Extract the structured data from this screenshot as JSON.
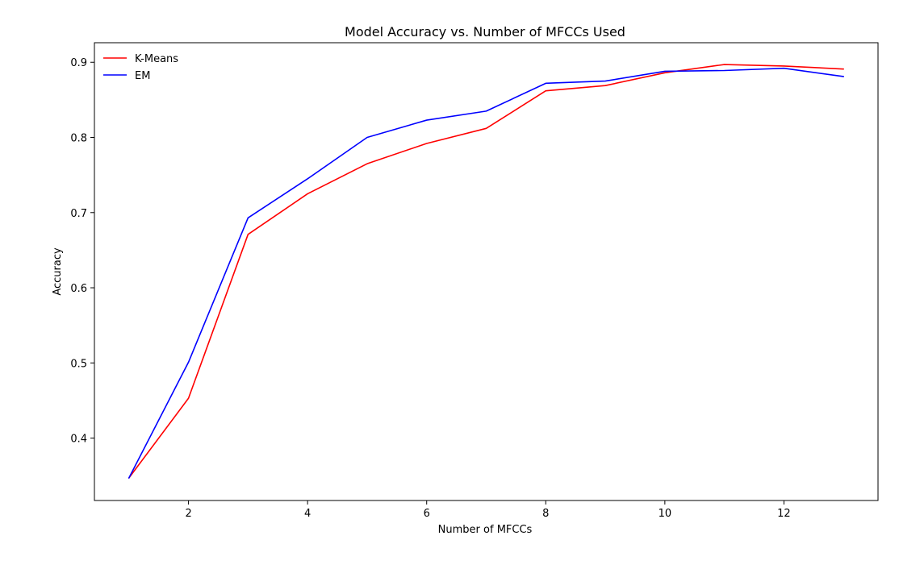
{
  "chart_data": {
    "type": "line",
    "title": "Model Accuracy vs. Number of MFCCs Used",
    "xlabel": "Number of MFCCs",
    "ylabel": "Accuracy",
    "x": [
      1,
      2,
      3,
      4,
      5,
      6,
      7,
      8,
      9,
      10,
      11,
      12,
      13
    ],
    "xlim": [
      0.42,
      13.58
    ],
    "ylim": [
      0.317,
      0.926
    ],
    "xticks": [
      2,
      4,
      6,
      8,
      10,
      12
    ],
    "yticks": [
      0.4,
      0.5,
      0.6,
      0.7,
      0.8,
      0.9
    ],
    "xtick_labels": [
      "2",
      "4",
      "6",
      "8",
      "10",
      "12"
    ],
    "ytick_labels": [
      "0.4",
      "0.5",
      "0.6",
      "0.7",
      "0.8",
      "0.9"
    ],
    "grid": false,
    "legend_position": "top-left",
    "series": [
      {
        "name": "K-Means",
        "color": "#ff0000",
        "values": [
          0.347,
          0.453,
          0.671,
          0.725,
          0.765,
          0.792,
          0.812,
          0.862,
          0.869,
          0.886,
          0.897,
          0.895,
          0.891
        ]
      },
      {
        "name": "EM",
        "color": "#0000ff",
        "values": [
          0.347,
          0.501,
          0.693,
          0.745,
          0.8,
          0.823,
          0.835,
          0.872,
          0.875,
          0.888,
          0.889,
          0.892,
          0.881
        ]
      }
    ]
  }
}
